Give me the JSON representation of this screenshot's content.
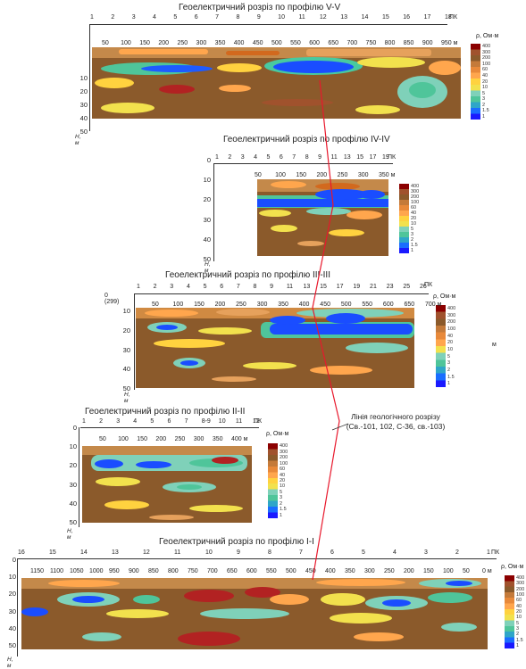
{
  "geology_line": {
    "label_line1": "Лінія геологічного розрізу",
    "label_line2": "(Св.-101, 102, С-36, св.-103)",
    "color": "#e8182c"
  },
  "legend_title": "ρ, Ом·м",
  "stray_m": "м",
  "panels": [
    {
      "title": "Геоелектричний розріз по  профілю V-V",
      "pk_unit": "ПК",
      "pickets": [
        "1",
        "2",
        "3",
        "4",
        "5",
        "6",
        "7",
        "8",
        "9",
        "10",
        "11",
        "12",
        "13",
        "14",
        "15",
        "16",
        "17",
        "18"
      ],
      "distances": [
        "50",
        "100",
        "150",
        "200",
        "250",
        "300",
        "350",
        "400",
        "450",
        "500",
        "550",
        "600",
        "650",
        "700",
        "750",
        "800",
        "850",
        "900",
        "950 м"
      ],
      "depth_ticks": [
        "10",
        "20",
        "30",
        "40",
        "50"
      ],
      "h_label": "H, м",
      "legend_values": [
        "400",
        "300",
        "200",
        "100",
        "60",
        "40",
        "20",
        "10",
        "5",
        "3",
        "2",
        "1.5",
        "1"
      ]
    },
    {
      "title": "Геоелектричний розріз по  профілю IV-IV",
      "pk_unit": "ПК",
      "pickets": [
        "1",
        "2",
        "3",
        "4",
        "5",
        "6",
        "7",
        "8",
        "9",
        "11",
        "13",
        "15",
        "17",
        "19"
      ],
      "distances": [
        "50",
        "100",
        "150",
        "200",
        "250",
        "300",
        "350 м"
      ],
      "depth_ticks": [
        "0",
        "10",
        "20",
        "30",
        "40",
        "50"
      ],
      "h_label": "H, м",
      "legend_values": [
        "400",
        "300",
        "200",
        "100",
        "60",
        "40",
        "20",
        "10",
        "5",
        "3",
        "2",
        "1.5",
        "1"
      ]
    },
    {
      "title": "Геоелектричний розріз по  профілю III-III",
      "pk_unit": "ПК",
      "start_label": "0 (299)",
      "pickets": [
        "1",
        "2",
        "3",
        "4",
        "5",
        "6",
        "7",
        "8",
        "9",
        "11",
        "13",
        "15",
        "17",
        "19",
        "21",
        "23",
        "25",
        "26"
      ],
      "distances": [
        "50",
        "100",
        "150",
        "200",
        "250",
        "300",
        "350",
        "400",
        "450",
        "500",
        "550",
        "600",
        "650",
        "700 м"
      ],
      "depth_ticks": [
        "10",
        "20",
        "30",
        "40",
        "50"
      ],
      "h_label": "H, м",
      "legend_values": [
        "400",
        "300",
        "200",
        "100",
        "40",
        "20",
        "10",
        "5",
        "3",
        "2",
        "1.5",
        "1"
      ]
    },
    {
      "title": "Геоелектричний розріз по  профілю II-II",
      "pk_unit": "ПК",
      "pickets": [
        "1",
        "2",
        "3",
        "4",
        "5",
        "6",
        "7",
        "8-9",
        "10",
        "11",
        "12"
      ],
      "distances": [
        "50",
        "100",
        "150",
        "200",
        "250",
        "300",
        "350",
        "400 м"
      ],
      "depth_ticks": [
        "0",
        "10",
        "20",
        "30",
        "40",
        "50"
      ],
      "h_label": "H, м",
      "legend_values": [
        "400",
        "300",
        "200",
        "100",
        "60",
        "40",
        "20",
        "10",
        "5",
        "3",
        "2",
        "1.5",
        "1"
      ]
    },
    {
      "title": "Геоелектричний розріз по  профілю I-I",
      "pk_unit": "ПК",
      "pickets": [
        "16",
        "15",
        "14",
        "13",
        "12",
        "11",
        "10",
        "9",
        "8",
        "7",
        "6",
        "5",
        "4",
        "3",
        "2",
        "1"
      ],
      "distances": [
        "1150",
        "1100",
        "1050",
        "1000",
        "950",
        "900",
        "850",
        "800",
        "750",
        "700",
        "650",
        "600",
        "550",
        "500",
        "450",
        "400",
        "350",
        "300",
        "250",
        "200",
        "150",
        "100",
        "50",
        "0 м"
      ],
      "depth_ticks": [
        "0",
        "10",
        "20",
        "30",
        "40",
        "50"
      ],
      "h_label": "H, м",
      "legend_values": [
        "400",
        "300",
        "200",
        "100",
        "60",
        "40",
        "20",
        "10",
        "5",
        "3",
        "2",
        "1.5",
        "1"
      ]
    }
  ]
}
